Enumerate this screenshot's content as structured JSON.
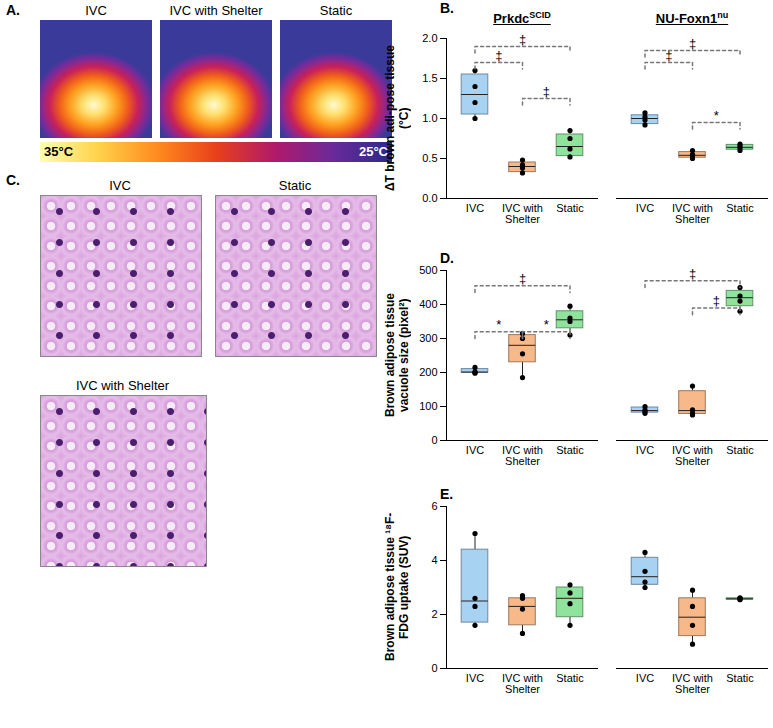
{
  "figure": {
    "panels": [
      {
        "letter": "A.",
        "images": [
          "IVC",
          "IVC with Shelter",
          "Static"
        ],
        "colorbar": {
          "range": [
            35,
            25
          ],
          "ticks": [
            {
              "value": 35,
              "label": "35°C"
            },
            {
              "value": 25,
              "label": "25°C"
            }
          ]
        }
      },
      {
        "letter": "C.",
        "images": [
          "IVC",
          "Static",
          "IVC with Shelter"
        ]
      }
    ]
  },
  "chart_data": [
    {
      "letter": "B.",
      "type": "box",
      "y_label": "ΔT brown adi-pose tissue (°C)",
      "ylim": [
        0,
        2
      ],
      "yticks": [
        {
          "value": 0,
          "label": "0.0"
        },
        {
          "value": 0.5,
          "label": "0.5"
        },
        {
          "value": 1,
          "label": "1.0"
        },
        {
          "value": 1.5,
          "label": "1.5"
        },
        {
          "value": 2,
          "label": "2.0"
        }
      ],
      "categories": [
        "IVC",
        "IVC with Shelter",
        "Static"
      ],
      "colors": [
        "#a8d2f2",
        "#f7b88a",
        "#8fe39c"
      ],
      "groups": [
        {
          "name": "Prkdc",
          "name_superscript": "SCID",
          "boxes": [
            {
              "min": 1.0,
              "q1": 1.05,
              "median": 1.3,
              "q3": 1.55,
              "max": 1.6,
              "points": [
                1.0,
                1.2,
                1.4,
                1.6
              ]
            },
            {
              "min": 0.3,
              "q1": 0.33,
              "median": 0.4,
              "q3": 0.45,
              "max": 0.48,
              "points": [
                0.32,
                0.38,
                0.42,
                0.48
              ]
            },
            {
              "min": 0.5,
              "q1": 0.53,
              "median": 0.65,
              "q3": 0.8,
              "max": 0.85,
              "points": [
                0.52,
                0.62,
                0.75,
                0.85
              ]
            }
          ],
          "annotations": [
            {
              "from": 0,
              "to": 1,
              "y": 1.7,
              "label": "‡"
            },
            {
              "from": 1,
              "to": 2,
              "y": 1.25,
              "label": "‡"
            },
            {
              "from": 0,
              "to": 2,
              "y": 1.9,
              "label": "‡"
            }
          ]
        },
        {
          "name": "NU-Foxn1",
          "name_superscript": "nu",
          "boxes": [
            {
              "min": 0.9,
              "q1": 0.93,
              "median": 1.0,
              "q3": 1.04,
              "max": 1.07,
              "points": [
                0.92,
                0.98,
                1.02,
                1.07
              ]
            },
            {
              "min": 0.5,
              "q1": 0.51,
              "median": 0.54,
              "q3": 0.58,
              "max": 0.6,
              "points": [
                0.5,
                0.54,
                0.55,
                0.6
              ]
            },
            {
              "min": 0.6,
              "q1": 0.61,
              "median": 0.64,
              "q3": 0.67,
              "max": 0.68,
              "points": [
                0.6,
                0.63,
                0.66,
                0.68
              ]
            }
          ],
          "annotations": [
            {
              "from": 0,
              "to": 1,
              "y": 1.7,
              "label": "‡"
            },
            {
              "from": 1,
              "to": 2,
              "y": 0.95,
              "label": "*"
            },
            {
              "from": 0,
              "to": 2,
              "y": 1.85,
              "label": "‡"
            }
          ]
        }
      ]
    },
    {
      "letter": "D.",
      "type": "box",
      "y_label": "Brown adipose tissue vacuole size (pixel²)",
      "ylim": [
        0,
        500
      ],
      "yticks": [
        0,
        100,
        200,
        300,
        400,
        500
      ],
      "categories": [
        "IVC",
        "IVC with Shelter",
        "Static"
      ],
      "colors": [
        "#a8d2f2",
        "#f7b88a",
        "#8fe39c"
      ],
      "groups": [
        {
          "boxes": [
            {
              "min": 198,
              "q1": 200,
              "median": 201,
              "q3": 210,
              "max": 215,
              "points": [
                198,
                200,
                202,
                215
              ]
            },
            {
              "min": 185,
              "q1": 230,
              "median": 280,
              "q3": 310,
              "max": 320,
              "points": [
                185,
                255,
                300,
                315
              ]
            },
            {
              "min": 310,
              "q1": 330,
              "median": 355,
              "q3": 380,
              "max": 395,
              "points": [
                310,
                350,
                360,
                395
              ]
            }
          ],
          "annotations": [
            {
              "from": 0,
              "to": 1,
              "y": 320,
              "label": "*"
            },
            {
              "from": 1,
              "to": 2,
              "y": 320,
              "label": "*"
            },
            {
              "from": 0,
              "to": 2,
              "y": 455,
              "label": "‡"
            }
          ]
        },
        {
          "boxes": [
            {
              "min": 78,
              "q1": 82,
              "median": 88,
              "q3": 97,
              "max": 102,
              "points": [
                80,
                85,
                90,
                100
              ]
            },
            {
              "min": 75,
              "q1": 78,
              "median": 88,
              "q3": 145,
              "max": 165,
              "points": [
                75,
                80,
                90,
                160
              ]
            },
            {
              "min": 380,
              "q1": 395,
              "median": 420,
              "q3": 440,
              "max": 455,
              "points": [
                380,
                410,
                425,
                450
              ]
            }
          ],
          "annotations": [
            {
              "from": 1,
              "to": 2,
              "y": 390,
              "label": "‡"
            },
            {
              "from": 0,
              "to": 2,
              "y": 470,
              "label": "‡"
            }
          ]
        }
      ]
    },
    {
      "letter": "E.",
      "type": "box",
      "y_label": "Brown adipose tissue ¹⁸F-FDG uptake (SUV)",
      "ylim": [
        0,
        6
      ],
      "yticks": [
        0,
        2,
        4,
        6
      ],
      "categories": [
        "IVC",
        "IVC with Shelter",
        "Static"
      ],
      "colors": [
        "#a8d2f2",
        "#f7b88a",
        "#8fe39c"
      ],
      "groups": [
        {
          "boxes": [
            {
              "min": 1.6,
              "q1": 1.7,
              "median": 2.5,
              "q3": 4.4,
              "max": 5.0,
              "points": [
                1.6,
                2.3,
                2.6,
                5.0
              ]
            },
            {
              "min": 1.3,
              "q1": 1.6,
              "median": 2.3,
              "q3": 2.6,
              "max": 2.7,
              "points": [
                1.3,
                2.2,
                2.6,
                2.7
              ]
            },
            {
              "min": 1.6,
              "q1": 1.9,
              "median": 2.6,
              "q3": 3.0,
              "max": 3.1,
              "points": [
                1.6,
                2.4,
                2.8,
                3.1
              ]
            }
          ],
          "annotations": []
        },
        {
          "boxes": [
            {
              "min": 2.9,
              "q1": 3.1,
              "median": 3.4,
              "q3": 4.1,
              "max": 4.3,
              "points": [
                3.0,
                3.2,
                3.6,
                4.3
              ]
            },
            {
              "min": 0.9,
              "q1": 1.2,
              "median": 1.9,
              "q3": 2.6,
              "max": 2.9,
              "points": [
                0.9,
                1.6,
                2.3,
                2.9
              ]
            },
            {
              "min": 2.55,
              "q1": 2.55,
              "median": 2.58,
              "q3": 2.6,
              "max": 2.62,
              "points": [
                2.55,
                2.57,
                2.6,
                2.62
              ]
            }
          ],
          "annotations": []
        }
      ]
    }
  ]
}
